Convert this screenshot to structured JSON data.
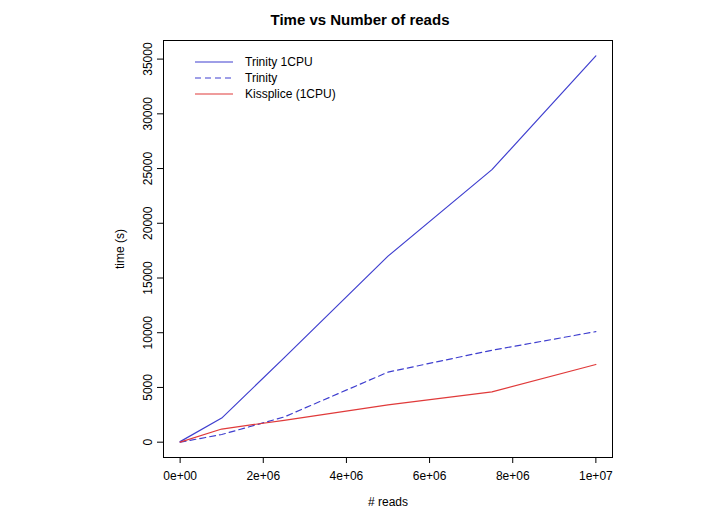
{
  "chart_data": {
    "type": "line",
    "title": "Time vs Number of reads",
    "x_label": "# reads",
    "y_label": "time (s)",
    "x": [
      0,
      1000000,
      2500000,
      5000000,
      7500000,
      10000000
    ],
    "series": [
      {
        "name": "Trinity 1CPU",
        "color": "#3f3fcf",
        "line_style": "solid",
        "values": [
          50,
          2200,
          7700,
          17000,
          24900,
          35300
        ]
      },
      {
        "name": "Trinity",
        "color": "#3f3fcf",
        "line_style": "dashed",
        "values": [
          0,
          700,
          2300,
          6400,
          8400,
          10100
        ]
      },
      {
        "name": "Kissplice (1CPU)",
        "color": "#e03a3a",
        "line_style": "solid",
        "values": [
          0,
          1200,
          2000,
          3400,
          4600,
          7100
        ]
      }
    ],
    "xlim": [
      -400000,
      10400000
    ],
    "ylim": [
      -1400,
      36700
    ],
    "xticks": [
      {
        "value": 0,
        "label": "0e+00"
      },
      {
        "value": 2000000,
        "label": "2e+06"
      },
      {
        "value": 4000000,
        "label": "4e+06"
      },
      {
        "value": 6000000,
        "label": "6e+06"
      },
      {
        "value": 8000000,
        "label": "8e+06"
      },
      {
        "value": 10000000,
        "label": "1e+07"
      }
    ],
    "yticks": [
      0,
      5000,
      10000,
      15000,
      20000,
      25000,
      30000,
      35000
    ],
    "grid": false,
    "legend": "top-left"
  }
}
